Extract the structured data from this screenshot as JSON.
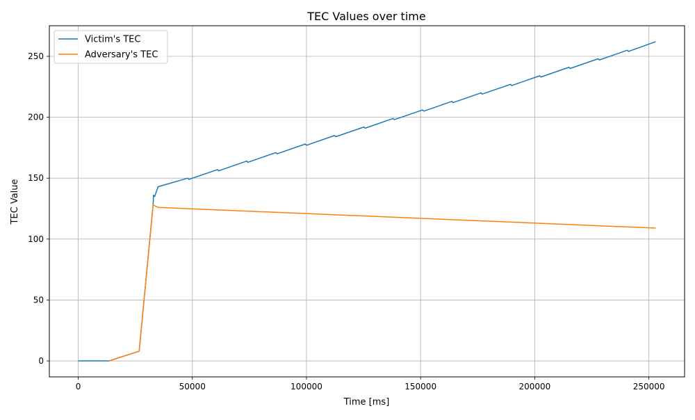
{
  "chart_data": {
    "type": "line",
    "title": "TEC Values over time",
    "xlabel": "Time [ms]",
    "ylabel": "TEC Value",
    "xlim": [
      -12650,
      265650
    ],
    "ylim": [
      -13.1,
      275.1
    ],
    "x_ticks": [
      0,
      50000,
      100000,
      150000,
      200000,
      250000
    ],
    "y_ticks": [
      0,
      50,
      100,
      150,
      200,
      250
    ],
    "x_tick_labels": [
      "0",
      "50000",
      "100000",
      "150000",
      "200000",
      "250000"
    ],
    "y_tick_labels": [
      "0",
      "50",
      "100",
      "150",
      "200",
      "250"
    ],
    "grid": true,
    "legend_position": "top-left",
    "series": [
      {
        "name": "Victim's TEC",
        "color": "#1f77b4",
        "points": [
          [
            0,
            0
          ],
          [
            13500,
            0
          ],
          [
            26700,
            8
          ],
          [
            32800,
            128
          ],
          [
            33000,
            136
          ],
          [
            33500,
            135
          ],
          [
            35000,
            143
          ],
          [
            48000,
            150
          ],
          [
            48500,
            149
          ],
          [
            61000,
            157
          ],
          [
            61500,
            156
          ],
          [
            73800,
            164
          ],
          [
            74300,
            163
          ],
          [
            86600,
            171
          ],
          [
            87100,
            170
          ],
          [
            99500,
            178
          ],
          [
            100000,
            177
          ],
          [
            112300,
            185
          ],
          [
            112800,
            184
          ],
          [
            125200,
            192
          ],
          [
            125700,
            191
          ],
          [
            138000,
            199
          ],
          [
            138500,
            198
          ],
          [
            150900,
            206
          ],
          [
            151400,
            205
          ],
          [
            163700,
            213
          ],
          [
            164200,
            212
          ],
          [
            176500,
            220
          ],
          [
            177000,
            219
          ],
          [
            189400,
            227
          ],
          [
            189900,
            226
          ],
          [
            202200,
            234
          ],
          [
            202700,
            233
          ],
          [
            215000,
            241
          ],
          [
            215500,
            240
          ],
          [
            227800,
            248
          ],
          [
            228300,
            247
          ],
          [
            240600,
            255
          ],
          [
            241100,
            254
          ],
          [
            253000,
            262
          ]
        ]
      },
      {
        "name": "Adversary's TEC",
        "color": "#ff7f0e",
        "points": [
          [
            13500,
            0
          ],
          [
            26700,
            8
          ],
          [
            32800,
            128
          ],
          [
            35000,
            126
          ],
          [
            253000,
            109
          ]
        ]
      }
    ]
  }
}
